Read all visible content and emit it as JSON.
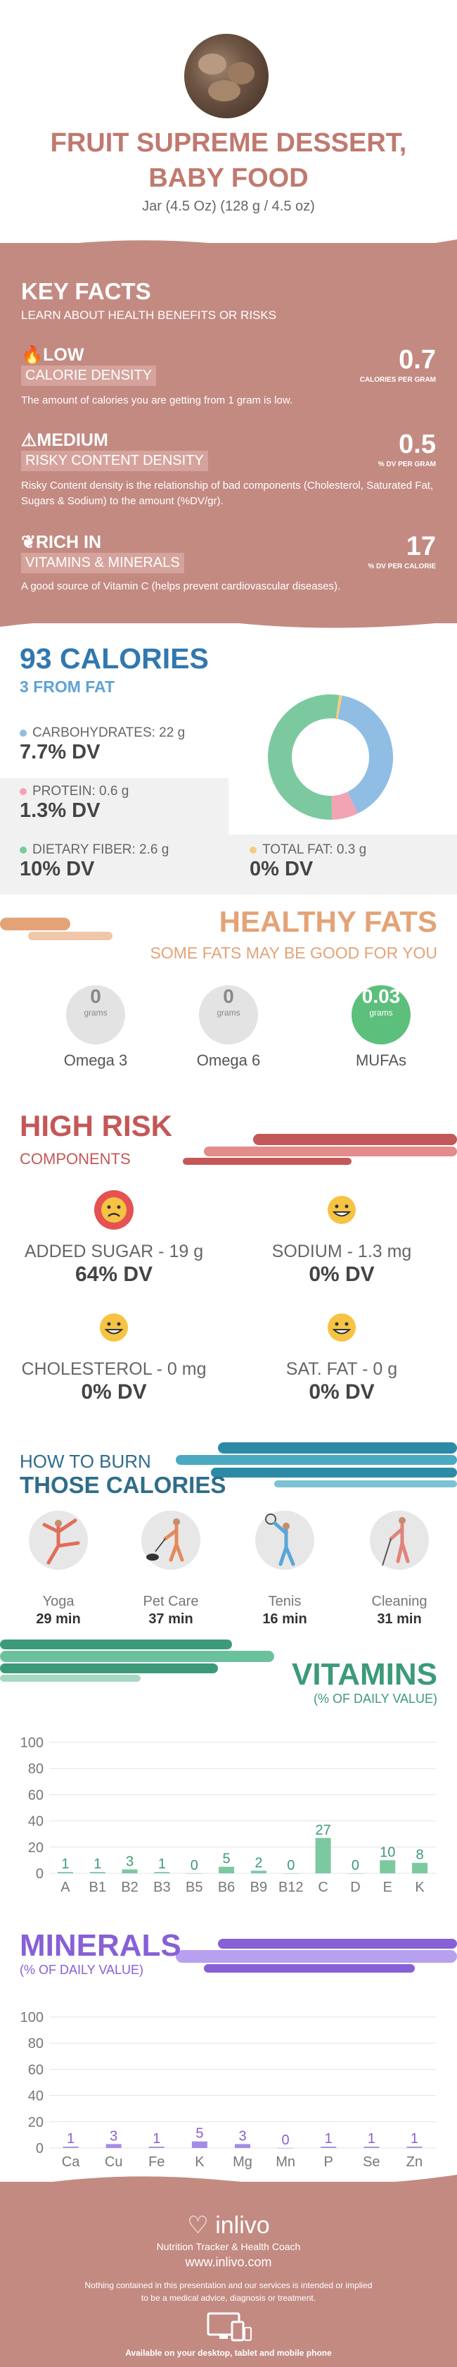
{
  "header": {
    "title_line1": "FRUIT SUPREME DESSERT,",
    "title_line2": "BABY FOOD",
    "serving": "Jar (4.5 Oz) (128 g / 4.5 oz)"
  },
  "key_facts": {
    "title": "KEY FACTS",
    "subtitle": "LEARN ABOUT HEALTH BENEFITS OR RISKS",
    "items": [
      {
        "level": "LOW",
        "band": "CALORIE DENSITY",
        "value": "0.7",
        "unit": "CALORIES PER GRAM",
        "text": "The amount of calories you are getting from 1 gram is low.",
        "icon": "flame-icon"
      },
      {
        "level": "MEDIUM",
        "band": "RISKY CONTENT DENSITY",
        "value": "0.5",
        "unit": "% DV PER GRAM",
        "text": "Risky Content density is the relationship of bad components (Cholesterol, Saturated Fat, Sugars & Sodium) to the amount (%DV/gr).",
        "icon": "warning-icon"
      },
      {
        "level": "RICH  IN",
        "band": "VITAMINS & MINERALS",
        "value": "17",
        "unit": "% DV PER CALORIE",
        "text": "A good source of Vitamin C (helps prevent cardiovascular diseases).",
        "icon": "leaf-icon"
      }
    ]
  },
  "calories": {
    "total": "93 CALORIES",
    "from_fat": "3 FROM FAT",
    "nutrients": [
      {
        "label": "CARBOHYDRATES: 22 g",
        "dv": "7.7% DV",
        "color": "#8fbde4"
      },
      {
        "label": "PROTEIN: 0.6 g",
        "dv": "1.3% DV",
        "color": "#f2a3b4"
      },
      {
        "label": "DIETARY FIBER: 2.6 g",
        "dv": "10% DV",
        "color": "#7cc9a0"
      },
      {
        "label": "TOTAL FAT: 0.3 g",
        "dv": "0% DV",
        "color": "#f2cf7e"
      }
    ]
  },
  "healthy_fats": {
    "title": "HEALTHY FATS",
    "subtitle": "SOME FATS MAY BE GOOD FOR YOU",
    "items": [
      {
        "value": "0",
        "unit": "grams",
        "name": "Omega 3"
      },
      {
        "value": "0",
        "unit": "grams",
        "name": "Omega 6"
      },
      {
        "value": "0.03",
        "unit": "grams",
        "name": "MUFAs"
      }
    ]
  },
  "high_risk": {
    "title": "HIGH RISK",
    "subtitle": "COMPONENTS",
    "items": [
      {
        "label": "ADDED SUGAR - 19 g",
        "dv": "64% DV",
        "status": "sad"
      },
      {
        "label": "SODIUM - 1.3 mg",
        "dv": "0% DV",
        "status": "happy"
      },
      {
        "label": "CHOLESTEROL - 0 mg",
        "dv": "0% DV",
        "status": "happy"
      },
      {
        "label": "SAT. FAT - 0 g",
        "dv": "0% DV",
        "status": "happy"
      }
    ]
  },
  "burn": {
    "title_line1": "HOW TO BURN",
    "title_line2": "THOSE CALORIES",
    "activities": [
      {
        "name": "Yoga",
        "minutes": "29 min"
      },
      {
        "name": "Pet Care",
        "minutes": "37 min"
      },
      {
        "name": "Tenis",
        "minutes": "16 min"
      },
      {
        "name": "Cleaning",
        "minutes": "31 min"
      }
    ]
  },
  "vitamins_section": {
    "title": "VITAMINS",
    "subtitle": "(% OF DAILY VALUE)"
  },
  "minerals_section": {
    "title": "MINERALS",
    "subtitle": "(% OF DAILY VALUE)"
  },
  "chart_data": [
    {
      "type": "pie",
      "title": "",
      "categories": [
        "Carbohydrates",
        "Protein",
        "Dietary Fiber",
        "Total Fat"
      ],
      "values": [
        7.7,
        1.3,
        10,
        0
      ]
    },
    {
      "type": "bar",
      "title": "VITAMINS",
      "categories": [
        "A",
        "B1",
        "B2",
        "B3",
        "B5",
        "B6",
        "B9",
        "B12",
        "C",
        "D",
        "E",
        "K"
      ],
      "values": [
        1,
        1,
        3,
        1,
        0,
        5,
        2,
        0,
        27,
        0,
        10,
        8
      ],
      "ylim": [
        0,
        100
      ],
      "yticks": [
        0,
        20,
        40,
        60,
        80,
        100
      ],
      "color": "#7cc9a0",
      "label_color": "#3d9a78"
    },
    {
      "type": "bar",
      "title": "MINERALS",
      "categories": [
        "Ca",
        "Cu",
        "Fe",
        "K",
        "Mg",
        "Mn",
        "P",
        "Se",
        "Zn"
      ],
      "values": [
        1,
        3,
        1,
        5,
        3,
        0,
        1,
        1,
        1
      ],
      "ylim": [
        0,
        100
      ],
      "yticks": [
        0,
        20,
        40,
        60,
        80,
        100
      ],
      "color": "#a58be6",
      "label_color": "#8760d6"
    }
  ],
  "footer": {
    "logo": "inlivo",
    "tagline": "Nutrition Tracker & Health Coach",
    "url": "www.inlivo.com",
    "disclaimer_line1": "Nothing contained in this presentation and our services is intended or implied",
    "disclaimer_line2": "to be a medical advice, diagnosis or treatment.",
    "devices": "Available on your desktop, tablet and mobile phone"
  }
}
